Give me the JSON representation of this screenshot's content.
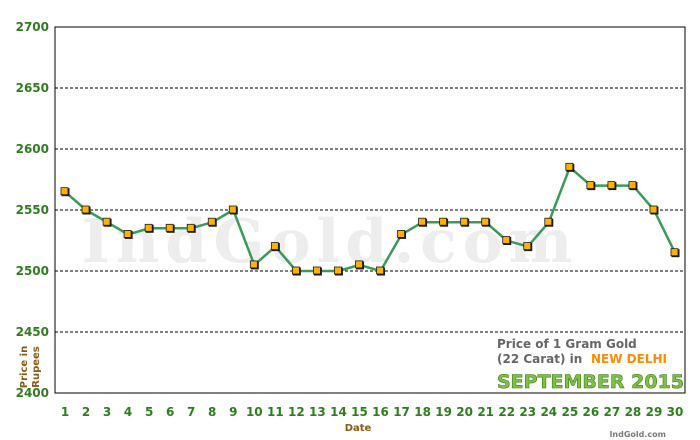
{
  "watermark": "IndGold.com",
  "caption": {
    "line1": "Price of 1 Gram Gold",
    "line2": "(22 Carat) in",
    "city": "NEW DELHI",
    "month": "SEPTEMBER 2015"
  },
  "credit": "IndGold.com",
  "chart_data": {
    "type": "line",
    "xlabel": "Date",
    "ylabel_line1": "Price in",
    "ylabel_line2": "Rupees",
    "ylim": [
      2400,
      2700
    ],
    "yticks": [
      "2400",
      "2450",
      "2500",
      "2550",
      "2600",
      "2650",
      "2700"
    ],
    "grid": "horizontal dashed",
    "x": [
      1,
      2,
      3,
      4,
      5,
      6,
      7,
      8,
      9,
      10,
      11,
      12,
      13,
      14,
      15,
      16,
      17,
      18,
      19,
      20,
      21,
      22,
      23,
      24,
      25,
      26,
      27,
      28,
      29,
      30
    ],
    "xticks": [
      "1",
      "2",
      "3",
      "4",
      "5",
      "6",
      "7",
      "8",
      "9",
      "10",
      "11",
      "12",
      "13",
      "14",
      "15",
      "16",
      "17",
      "18",
      "19",
      "20",
      "21",
      "22",
      "23",
      "24",
      "25",
      "26",
      "27",
      "28",
      "29",
      "30"
    ],
    "series": [
      {
        "values": [
          2565,
          2550,
          2540,
          2530,
          2535,
          2535,
          2535,
          2540,
          2550,
          2505,
          2520,
          2500,
          2500,
          2500,
          2505,
          2500,
          2530,
          2540,
          2540,
          2540,
          2540,
          2525,
          2520,
          2540,
          2585,
          2570,
          2570,
          2570,
          2550,
          2515
        ]
      }
    ],
    "colors": {
      "line": "#3a9a5a",
      "marker": "#ffb300",
      "marker_border": "#1a1a1a",
      "tick_text": "#2e7d1e",
      "axis_title": "#8a5a12"
    }
  }
}
